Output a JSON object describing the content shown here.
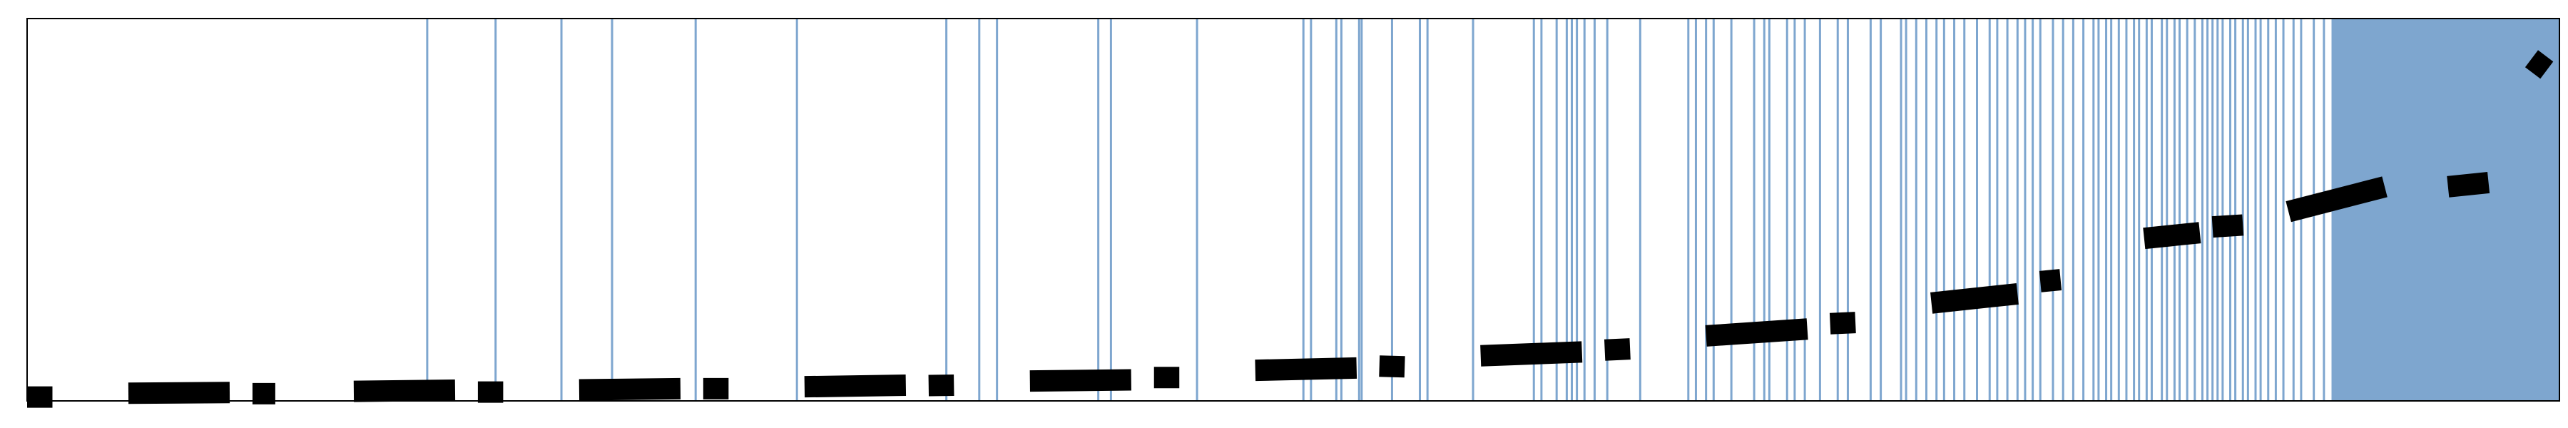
{
  "chart_data": {
    "type": "line",
    "title": "",
    "xlabel": "",
    "ylabel": "",
    "xlim": [
      0,
      1000
    ],
    "ylim": [
      0,
      1000
    ],
    "grid": false,
    "legend": "none",
    "ticks_visible": false,
    "colors": {
      "vertical_lines": "#7ea6cf",
      "line": "#000000",
      "frame": "#000000",
      "background": "#ffffff"
    },
    "vertical_lines_x": [
      158,
      185,
      211,
      231,
      264,
      304,
      363,
      376,
      383,
      423,
      428,
      462,
      504,
      507,
      517,
      519,
      526,
      527,
      539,
      550,
      553,
      571,
      595,
      598,
      604,
      608,
      610,
      612,
      615,
      619,
      624,
      637,
      656,
      659,
      663,
      666,
      673,
      682,
      686,
      688,
      695,
      698,
      702,
      708,
      715,
      719,
      728,
      732,
      740,
      742,
      746,
      750,
      754,
      757,
      761,
      765,
      770,
      775,
      778,
      782,
      786,
      789,
      792,
      795,
      800,
      804,
      808,
      812,
      816,
      818,
      821,
      823,
      826,
      829,
      832,
      834,
      837,
      839,
      843,
      845,
      848,
      850,
      853,
      856,
      859,
      861,
      863,
      865,
      867,
      870,
      872,
      875,
      877,
      880,
      882,
      885,
      888,
      891,
      895,
      898,
      903,
      907
    ],
    "dense_band_x": [
      910,
      1000
    ],
    "line_segments": [
      [
        [
          0,
          10
        ],
        [
          10,
          10
        ]
      ],
      [
        [
          40,
          20
        ],
        [
          80,
          22
        ]
      ],
      [
        [
          89,
          19
        ],
        [
          98,
          19
        ]
      ],
      [
        [
          129,
          25
        ],
        [
          169,
          28
        ]
      ],
      [
        [
          178,
          23
        ],
        [
          188,
          23
        ]
      ],
      [
        [
          218,
          29
        ],
        [
          258,
          32
        ]
      ],
      [
        [
          267,
          32
        ],
        [
          277,
          32
        ]
      ],
      [
        [
          307,
          37
        ],
        [
          347,
          41
        ]
      ],
      [
        [
          356,
          40
        ],
        [
          366,
          41
        ]
      ],
      [
        [
          396,
          52
        ],
        [
          436,
          55
        ]
      ],
      [
        [
          445,
          61
        ],
        [
          455,
          61
        ]
      ],
      [
        [
          485,
          80
        ],
        [
          525,
          86
        ]
      ],
      [
        [
          534,
          91
        ],
        [
          544,
          89
        ]
      ],
      [
        [
          574,
          118
        ],
        [
          614,
          128
        ]
      ],
      [
        [
          623,
          133
        ],
        [
          633,
          136
        ]
      ],
      [
        [
          663,
          170
        ],
        [
          703,
          188
        ]
      ],
      [
        [
          712,
          202
        ],
        [
          722,
          205
        ]
      ],
      [
        [
          752,
          256
        ],
        [
          786,
          280
        ]
      ],
      [
        [
          795,
          312
        ],
        [
          803,
          317
        ]
      ],
      [
        [
          836,
          425
        ],
        [
          858,
          440
        ]
      ],
      [
        [
          863,
          455
        ],
        [
          875,
          460
        ]
      ],
      [
        [
          893,
          495
        ],
        [
          931,
          560
        ]
      ],
      [
        [
          956,
          560
        ],
        [
          972,
          571
        ]
      ],
      [
        [
          989,
          895
        ],
        [
          995,
          865
        ]
      ]
    ]
  }
}
